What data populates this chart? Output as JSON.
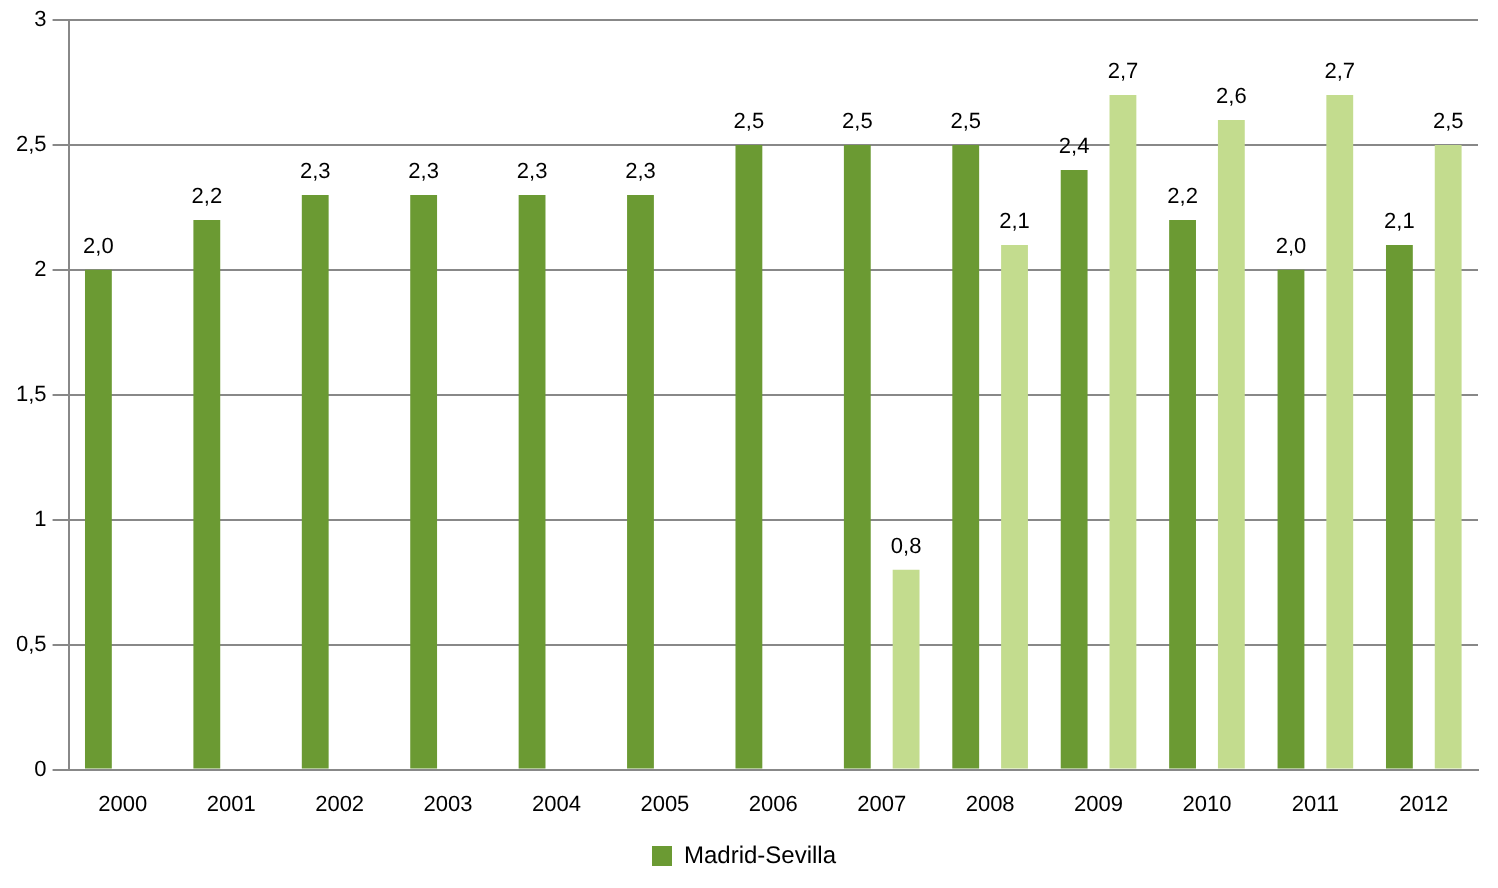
{
  "chart_data": {
    "type": "bar",
    "categories": [
      "2000",
      "2001",
      "2002",
      "2003",
      "2004",
      "2005",
      "2006",
      "2007",
      "2008",
      "2009",
      "2010",
      "2011",
      "2012"
    ],
    "series": [
      {
        "name": "Madrid-Sevilla",
        "color": "#6b9a33",
        "values": [
          2.0,
          2.2,
          2.3,
          2.3,
          2.3,
          2.3,
          2.5,
          2.5,
          2.5,
          2.4,
          2.2,
          2.0,
          2.1
        ],
        "value_labels": [
          "2,0",
          "2,2",
          "2,3",
          "2,3",
          "2,3",
          "2,3",
          "2,5",
          "2,5",
          "2,5",
          "2,4",
          "2,2",
          "2,0",
          "2,1"
        ]
      },
      {
        "color": "#c3dc8e",
        "values": [
          null,
          null,
          null,
          null,
          null,
          null,
          null,
          0.8,
          2.1,
          2.7,
          2.6,
          2.7,
          2.5
        ],
        "value_labels": [
          null,
          null,
          null,
          null,
          null,
          null,
          null,
          "0,8",
          "2,1",
          "2,7",
          "2,6",
          "2,7",
          "2,5"
        ]
      }
    ],
    "ylim": [
      0,
      3
    ],
    "yticks": [
      0,
      {
        "value": 0.5,
        "label": "0,5"
      },
      1,
      {
        "value": 1.5,
        "label": "1,5"
      },
      2,
      {
        "value": 2.5,
        "label": "2,5"
      },
      3
    ],
    "grid": "y",
    "legend": "bottom"
  }
}
